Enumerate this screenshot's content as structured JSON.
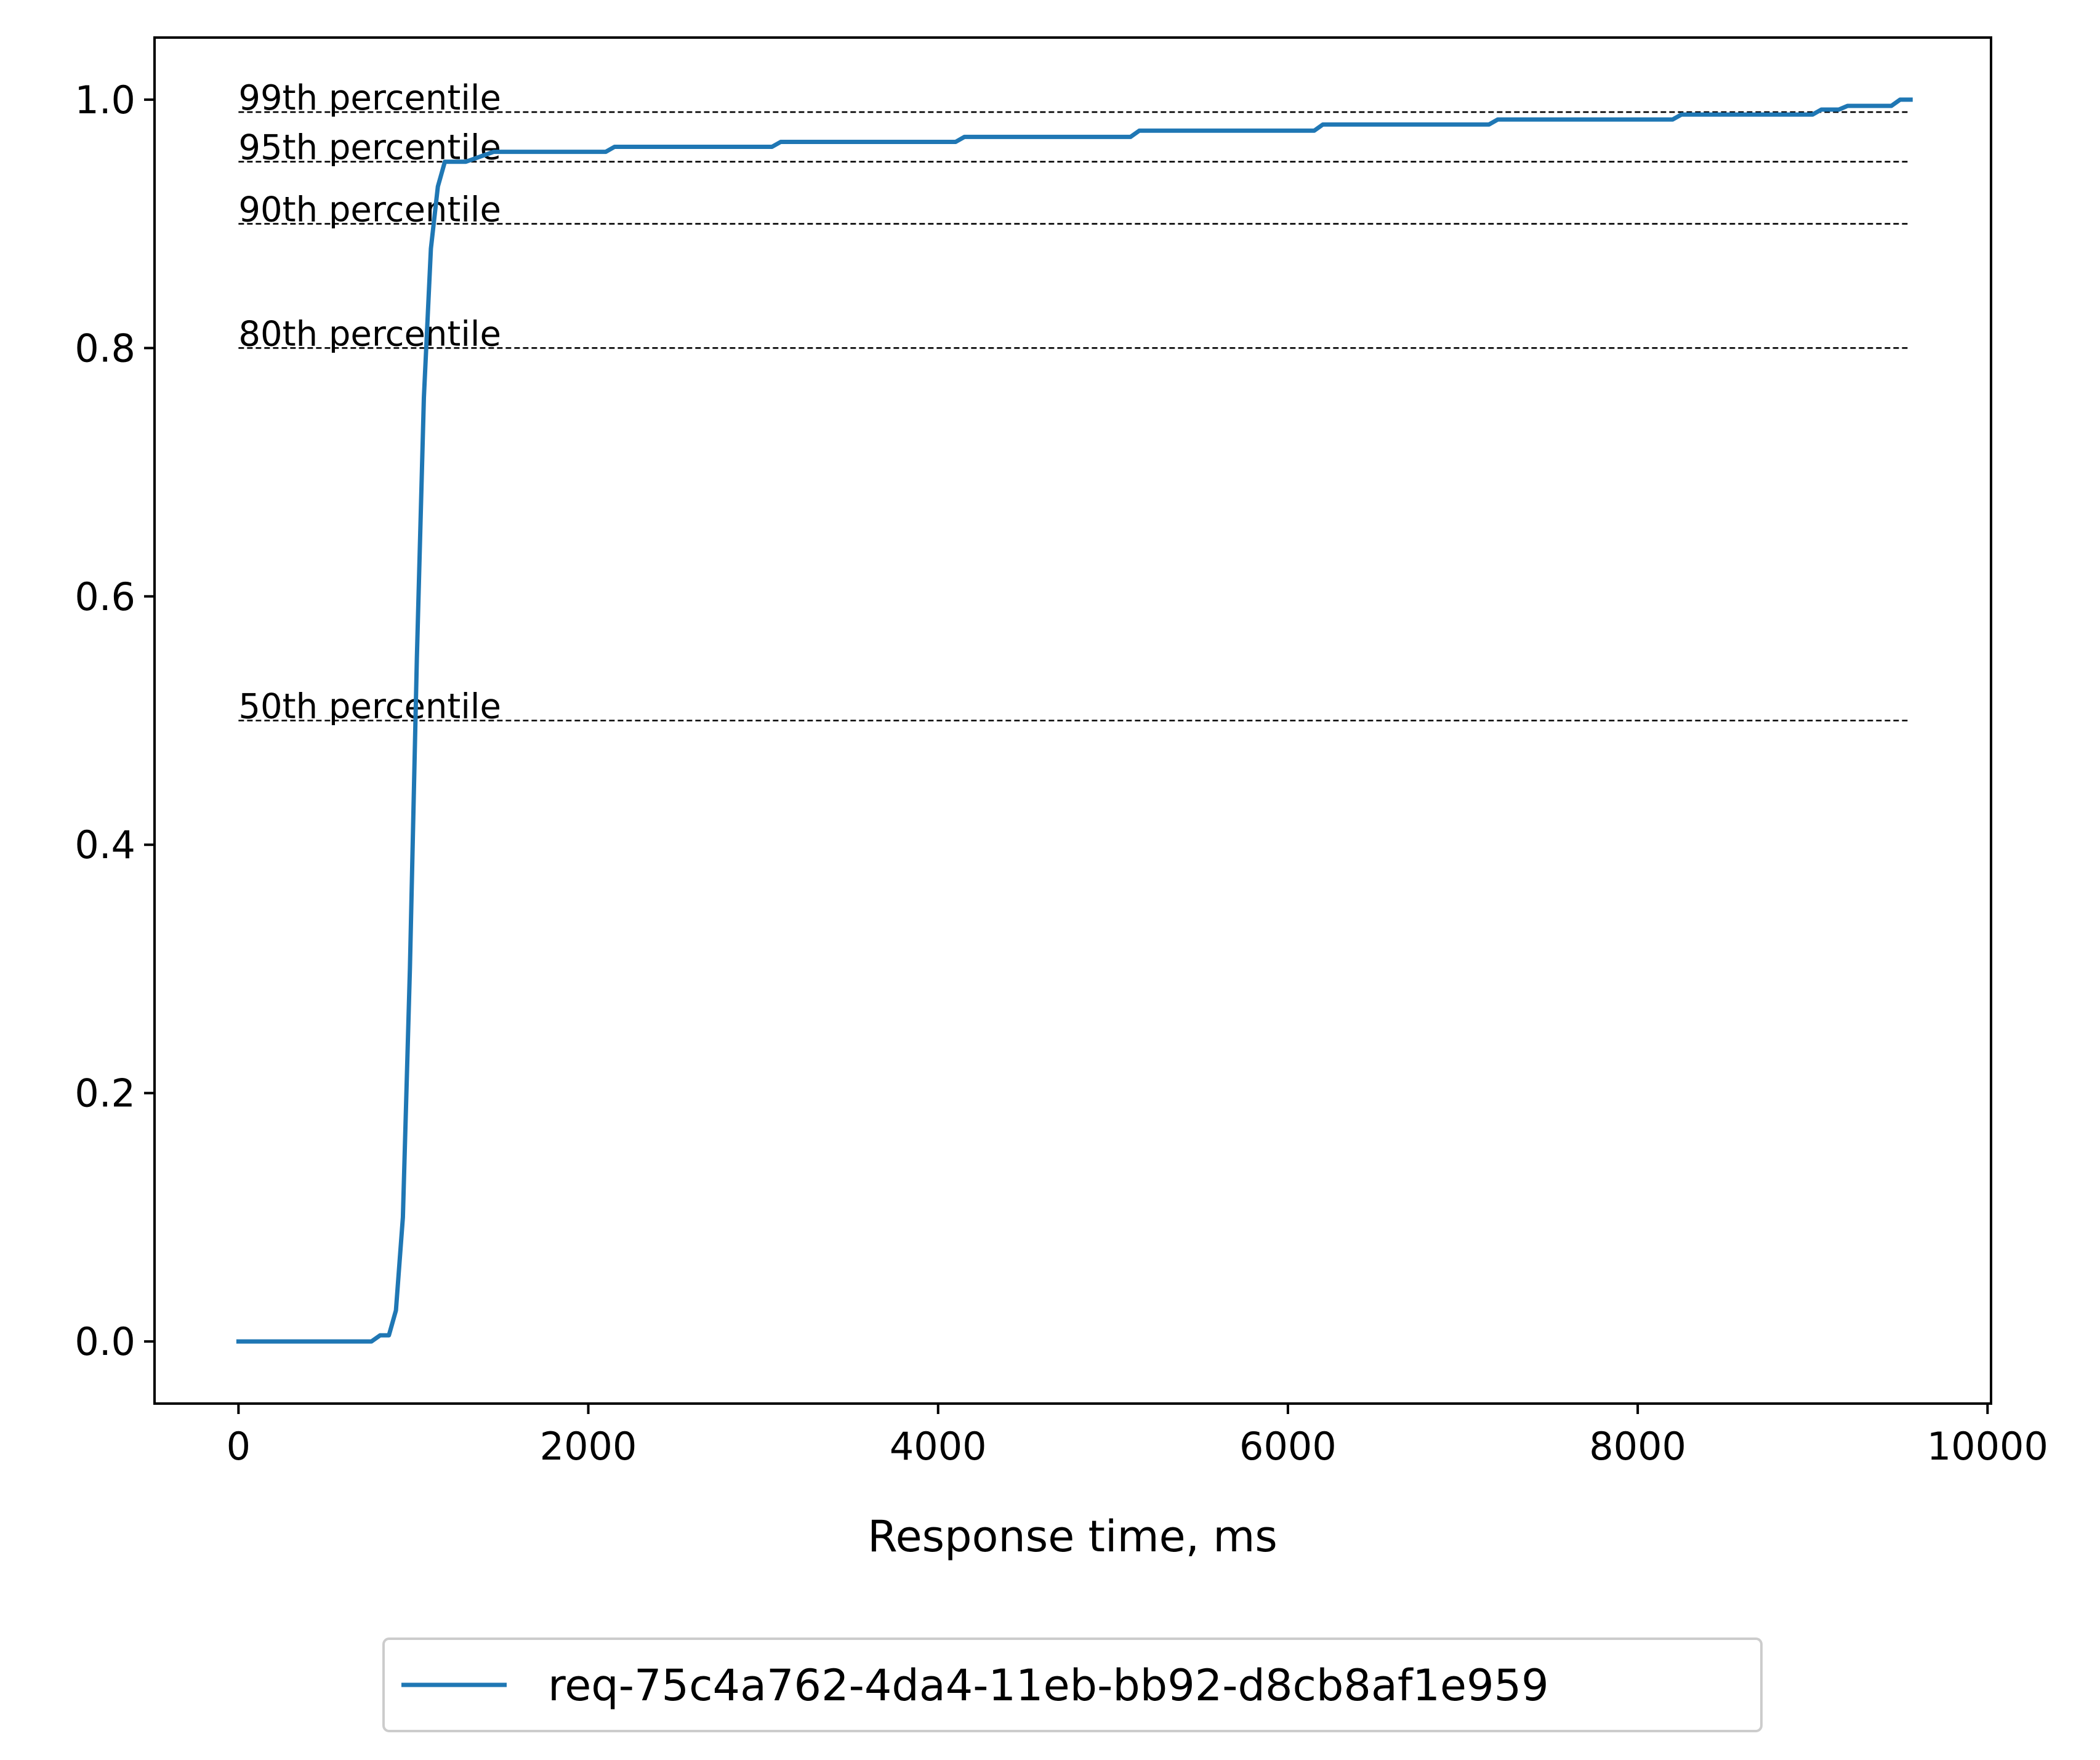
{
  "chart_data": {
    "type": "line",
    "title": "",
    "xlabel": "Response time, ms",
    "ylabel": "",
    "xlim": [
      -480,
      10020
    ],
    "ylim": [
      -0.05,
      1.05
    ],
    "x_ticks": [
      0,
      2000,
      4000,
      6000,
      8000,
      10000
    ],
    "x_tick_labels": [
      "0",
      "2000",
      "4000",
      "6000",
      "8000",
      "10000"
    ],
    "y_ticks": [
      0.0,
      0.2,
      0.4,
      0.6,
      0.8,
      1.0
    ],
    "y_tick_labels": [
      "0.0",
      "0.2",
      "0.4",
      "0.6",
      "0.8",
      "1.0"
    ],
    "grid": false,
    "legend_position": "bottom-center, below plot",
    "series": [
      {
        "name": "req-75c4a762-4da4-11eb-bb92-d8cb8af1e959",
        "color": "#1f77b4",
        "x": [
          0,
          760,
          810,
          860,
          900,
          940,
          980,
          1020,
          1060,
          1100,
          1140,
          1180,
          1220,
          1260,
          1300,
          1400,
          1460,
          1500,
          1550,
          1600,
          2100,
          2150,
          3050,
          3100,
          4100,
          4150,
          5100,
          5150,
          6150,
          6200,
          7150,
          7200,
          8200,
          8250,
          9000,
          9050,
          9150,
          9200,
          9450,
          9500,
          9560
        ],
        "y": [
          0.0,
          0.0,
          0.005,
          0.005,
          0.025,
          0.1,
          0.3,
          0.55,
          0.76,
          0.88,
          0.93,
          0.95,
          0.95,
          0.95,
          0.95,
          0.955,
          0.958,
          0.958,
          0.958,
          0.958,
          0.958,
          0.962,
          0.962,
          0.966,
          0.966,
          0.97,
          0.97,
          0.975,
          0.975,
          0.98,
          0.98,
          0.984,
          0.984,
          0.988,
          0.988,
          0.992,
          0.992,
          0.995,
          0.995,
          1.0,
          1.0
        ]
      }
    ],
    "reference_lines": [
      {
        "label": "99th percentile",
        "y": 0.99
      },
      {
        "label": "95th percentile",
        "y": 0.95
      },
      {
        "label": "90th percentile",
        "y": 0.9
      },
      {
        "label": "80th percentile",
        "y": 0.8
      },
      {
        "label": "50th percentile",
        "y": 0.5
      }
    ],
    "reference_line_x_range": [
      0,
      9560
    ],
    "reference_line_color": "#000000"
  },
  "legend": {
    "entry_label": "req-75c4a762-4da4-11eb-bb92-d8cb8af1e959"
  }
}
